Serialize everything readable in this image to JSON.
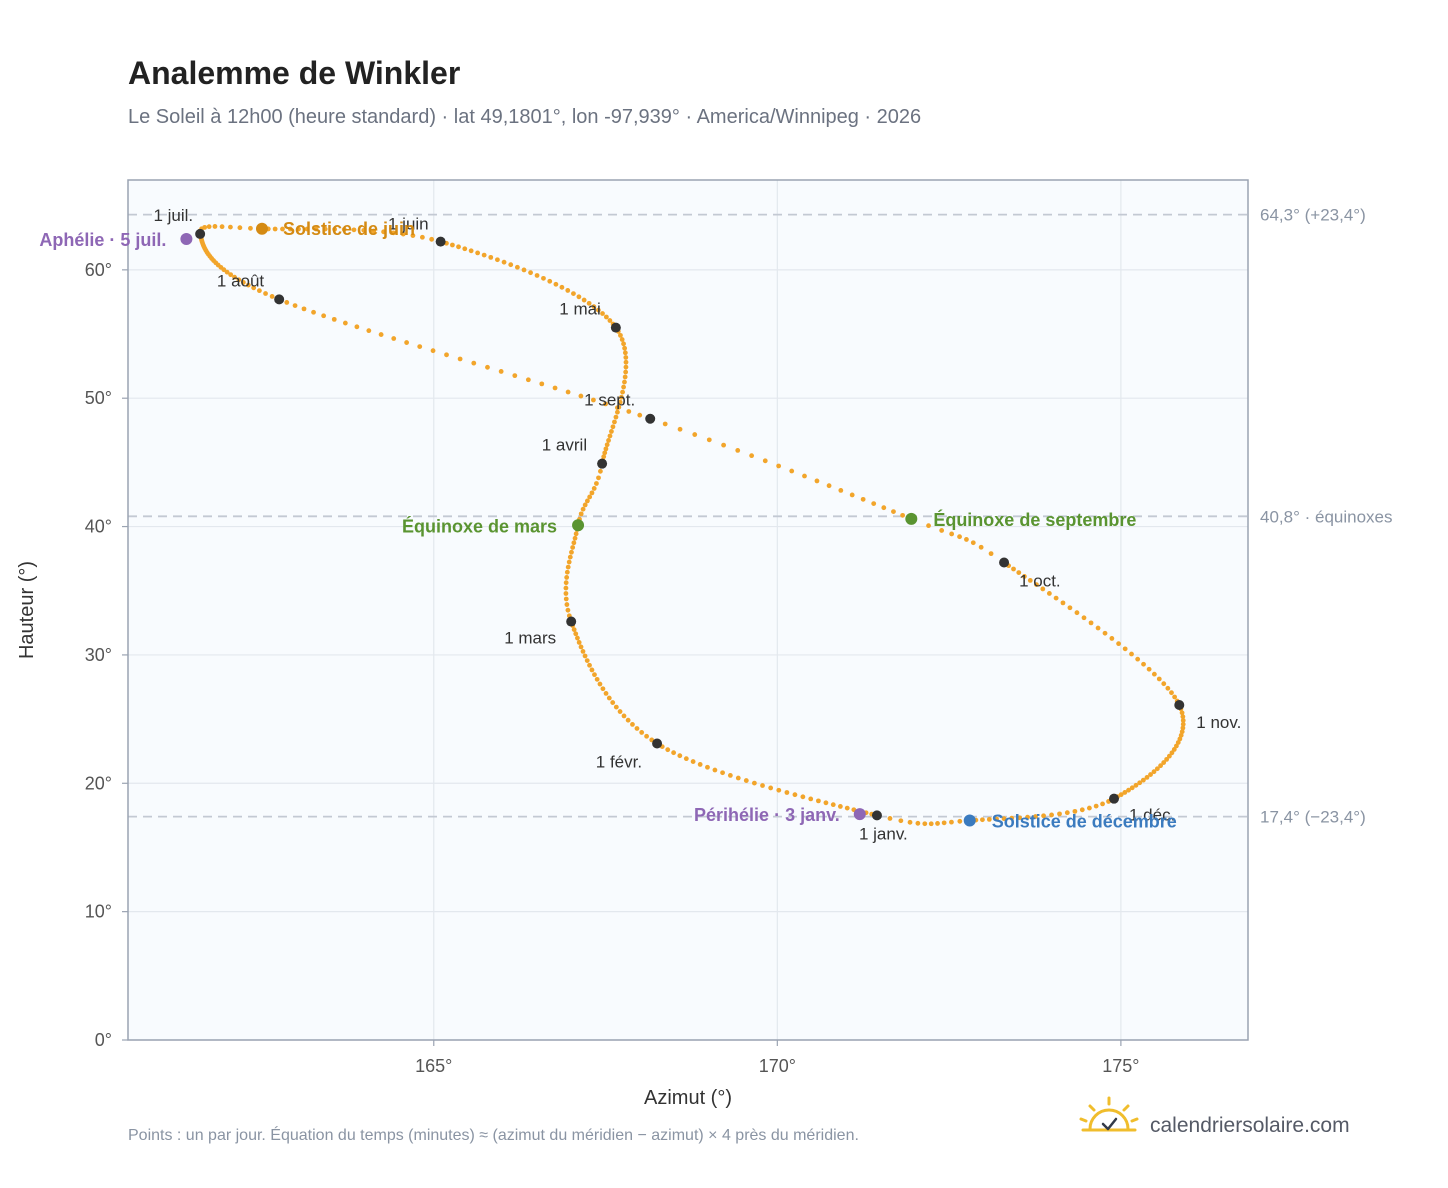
{
  "title": "Analemme de Winkler",
  "subtitle": "Le Soleil à 12h00 (heure standard) · lat 49,1801°, lon -97,939° · America/Winnipeg · 2026",
  "footnote": "Points : un par jour. Équation du temps (minutes) ≈ (azimut du méridien − azimut) × 4 près du méridien.",
  "brand": {
    "name": "calendriersolaire.com",
    "logo_icon": "sun-check-icon"
  },
  "colors": {
    "curve": "#f2a52b",
    "month_point": "#333333",
    "aphelion": "#8e67b5",
    "perihelion": "#8e67b5",
    "june_solstice": "#d48a13",
    "december_solstice": "#3b7bbf",
    "equinox": "#5a9431",
    "reference_line": "#c3c9d3",
    "plot_background": "#f8fbfe"
  },
  "chart_data": {
    "type": "scatter",
    "title": "Analemme de Winkler",
    "xlabel": "Azimut (°)",
    "ylabel": "Hauteur (°)",
    "xlim": [
      160.55,
      176.85
    ],
    "ylim": [
      0,
      67
    ],
    "x_ticks": [
      165,
      170,
      175
    ],
    "x_tick_labels": [
      "165°",
      "170°",
      "175°"
    ],
    "y_ticks": [
      0,
      10,
      20,
      30,
      40,
      50,
      60
    ],
    "y_tick_labels": [
      "0°",
      "10°",
      "20°",
      "30°",
      "40°",
      "50°",
      "60°"
    ],
    "grid": true,
    "reference_lines": [
      {
        "y": 64.3,
        "label": "64,3° (+23,4°)"
      },
      {
        "y": 40.8,
        "label": "40,8° · équinoxes"
      },
      {
        "y": 17.4,
        "label": "17,4° (−23,4°)"
      }
    ],
    "analemma_key_points": [
      {
        "doy": 1,
        "az": 171.45,
        "alt": 17.5
      },
      {
        "doy": 32,
        "az": 168.25,
        "alt": 23.1
      },
      {
        "doy": 60,
        "az": 167.0,
        "alt": 32.6
      },
      {
        "doy": 79,
        "az": 167.1,
        "alt": 40.1
      },
      {
        "doy": 91,
        "az": 167.45,
        "alt": 44.9
      },
      {
        "doy": 121,
        "az": 167.65,
        "alt": 55.5
      },
      {
        "doy": 152,
        "az": 165.1,
        "alt": 62.2
      },
      {
        "doy": 172,
        "az": 162.5,
        "alt": 63.2
      },
      {
        "doy": 182,
        "az": 161.6,
        "alt": 62.8
      },
      {
        "doy": 213,
        "az": 162.75,
        "alt": 57.7
      },
      {
        "doy": 244,
        "az": 168.15,
        "alt": 48.4
      },
      {
        "doy": 265,
        "az": 171.95,
        "alt": 40.6
      },
      {
        "doy": 274,
        "az": 173.3,
        "alt": 37.2
      },
      {
        "doy": 305,
        "az": 175.85,
        "alt": 26.1
      },
      {
        "doy": 335,
        "az": 174.9,
        "alt": 18.8
      },
      {
        "doy": 355,
        "az": 172.8,
        "alt": 17.1
      },
      {
        "doy": 366,
        "az": 171.45,
        "alt": 17.5
      }
    ],
    "month_markers": [
      {
        "label": "1 janv.",
        "az": 171.45,
        "alt": 17.5
      },
      {
        "label": "1 févr.",
        "az": 168.25,
        "alt": 23.1
      },
      {
        "label": "1 mars",
        "az": 167.0,
        "alt": 32.6
      },
      {
        "label": "1 avril",
        "az": 167.45,
        "alt": 44.9
      },
      {
        "label": "1 mai",
        "az": 167.65,
        "alt": 55.5
      },
      {
        "label": "1 juin",
        "az": 165.1,
        "alt": 62.2
      },
      {
        "label": "1 juil.",
        "az": 161.6,
        "alt": 62.8
      },
      {
        "label": "1 août",
        "az": 162.75,
        "alt": 57.7
      },
      {
        "label": "1 sept.",
        "az": 168.15,
        "alt": 48.4
      },
      {
        "label": "1 oct.",
        "az": 173.3,
        "alt": 37.2
      },
      {
        "label": "1 nov.",
        "az": 175.85,
        "alt": 26.1
      },
      {
        "label": "1 déc.",
        "az": 174.9,
        "alt": 18.8
      }
    ],
    "events": [
      {
        "label": "Aphélie · 5 juil.",
        "az": 161.4,
        "alt": 62.4,
        "color": "#8e67b5"
      },
      {
        "label": "Solstice de juin",
        "az": 162.5,
        "alt": 63.2,
        "color": "#d48a13"
      },
      {
        "label": "Équinoxe de mars",
        "az": 167.1,
        "alt": 40.1,
        "color": "#5a9431"
      },
      {
        "label": "Équinoxe de septembre",
        "az": 171.95,
        "alt": 40.6,
        "color": "#5a9431"
      },
      {
        "label": "Périhélie · 3 janv.",
        "az": 171.2,
        "alt": 17.6,
        "color": "#8e67b5"
      },
      {
        "label": "Solstice de décembre",
        "az": 172.8,
        "alt": 17.1,
        "color": "#3b7bbf"
      }
    ]
  }
}
